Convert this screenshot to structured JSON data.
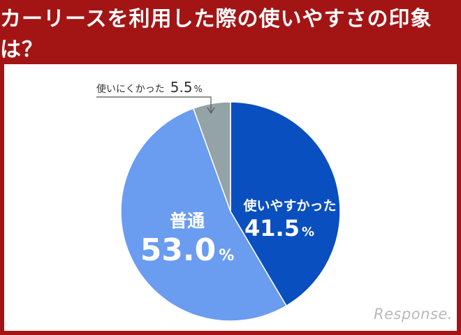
{
  "header": {
    "title": "カーリースを利用した際の使いやすさの印象は？"
  },
  "watermark": "Response.",
  "colors": {
    "header_bg": "#a31515",
    "easy": "#0a4fbf",
    "normal": "#6a9cf0",
    "hard": "#93a3a8"
  },
  "chart_data": {
    "type": "pie",
    "title": "カーリースを利用した際の使いやすさの印象は？",
    "unit": "%",
    "slices": [
      {
        "label": "使いやすかった",
        "value": 41.5,
        "value_text": "41.5",
        "color": "#0a4fbf"
      },
      {
        "label": "普通",
        "value": 53.0,
        "value_text": "53.0",
        "color": "#6a9cf0"
      },
      {
        "label": "使いにくかった",
        "value": 5.5,
        "value_text": "5.5",
        "color": "#93a3a8"
      }
    ]
  }
}
